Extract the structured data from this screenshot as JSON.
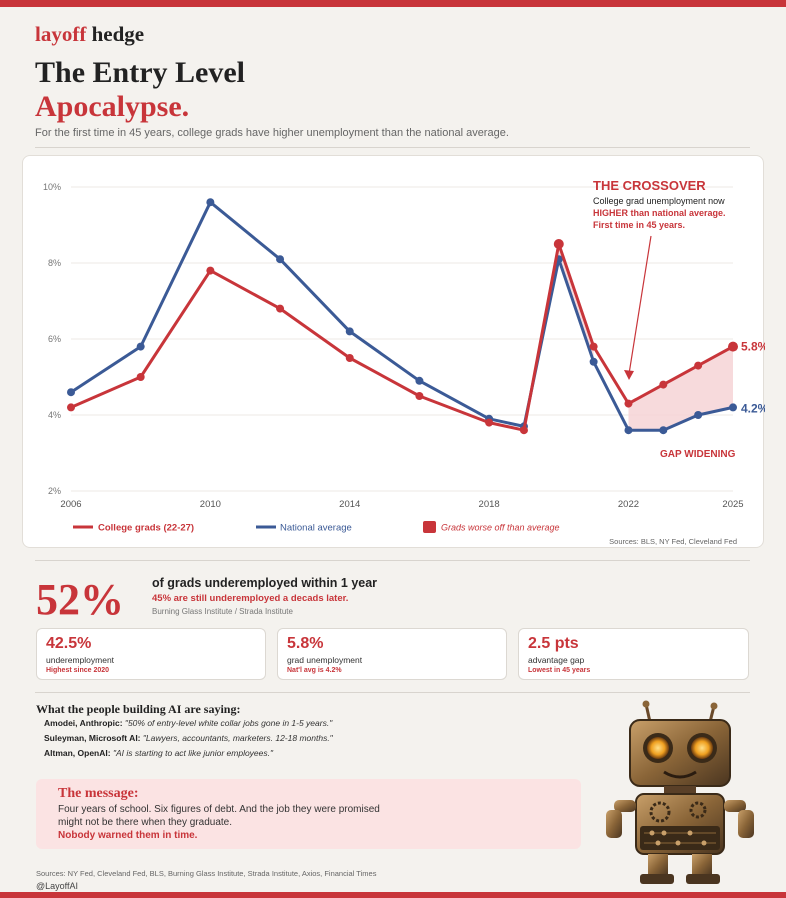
{
  "brand": {
    "part1": "layoff",
    "part2": "hedge"
  },
  "title": {
    "line1": "The Entry Level",
    "line2": "Apocalypse."
  },
  "subtitle": "For the first time in 45 years, college grads have higher unemployment than the national average.",
  "chart_data": {
    "type": "line",
    "x": [
      2006,
      2008,
      2010,
      2012,
      2014,
      2016,
      2018,
      2019,
      2020,
      2021,
      2022,
      2023,
      2024,
      2025
    ],
    "series": [
      {
        "name": "College grads (22-27)",
        "color": "#c8353a",
        "values": [
          4.2,
          5.0,
          7.8,
          6.8,
          5.5,
          4.5,
          3.8,
          3.6,
          8.5,
          5.8,
          4.3,
          4.8,
          5.3,
          5.8
        ]
      },
      {
        "name": "National average",
        "color": "#3b5a96",
        "values": [
          4.6,
          5.8,
          9.6,
          8.1,
          6.2,
          4.9,
          3.9,
          3.7,
          8.1,
          5.4,
          3.6,
          3.6,
          4.0,
          4.2
        ]
      }
    ],
    "x_ticks": [
      "2006",
      "2010",
      "2014",
      "2018",
      "2022",
      "2025"
    ],
    "y_ticks": [
      "2%",
      "4%",
      "6%",
      "8%",
      "10%"
    ],
    "ylim": [
      2,
      10
    ],
    "xlim": [
      2006,
      2025
    ],
    "grid": true,
    "end_labels": {
      "grads": "5.8%",
      "national": "4.2%"
    },
    "annotation": {
      "title": "THE CROSSOVER",
      "line1": "College grad unemployment now",
      "line2": "HIGHER than national average.",
      "line3": "First time in 45 years."
    },
    "gap_label": "GAP WIDENING",
    "legend": {
      "grads": "College grads (22-27)",
      "national": "National average",
      "gap": "Grads worse off than average"
    },
    "sources": "Sources: BLS, NY Fed, Cleveland Fed"
  },
  "stat": {
    "big": "52%",
    "headline": "of grads underemployed within 1 year",
    "red": "45% are still underemployed a decads later.",
    "source": "Burning Glass Institute / Strada Institute"
  },
  "boxes": [
    {
      "value": "42.5%",
      "label": "underemployment",
      "note": "Highest since 2020"
    },
    {
      "value": "5.8%",
      "label": "grad unemployment",
      "note": "Nat'l avg is 4.2%"
    },
    {
      "value": "2.5 pts",
      "label": "advantage gap",
      "note": "Lowest in 45 years"
    }
  ],
  "ai_section": {
    "heading": "What the people building AI are saying:",
    "quotes": [
      {
        "who": "Amodei, Anthropic:",
        "text": "\"50% of entry-level white collar jobs gone in 1-5 years.\""
      },
      {
        "who": "Suleyman, Microsoft AI:",
        "text": "\"Lawyers, accountants, marketers. 12-18 months.\""
      },
      {
        "who": "Altman, OpenAI:",
        "text": "\"AI is starting to act like junior employees.\""
      }
    ]
  },
  "message": {
    "title": "The message:",
    "line1": "Four years of school. Six figures of debt. And the job they were promised",
    "line2": "might not be there when they graduate.",
    "red": "Nobody warned them in time."
  },
  "footer": {
    "sources": "Sources: NY Fed, Cleveland Fed, BLS, Burning Glass Institute, Strada Institute, Axios, Financial Times",
    "handle": "@LayoffAI"
  },
  "colors": {
    "accent": "#c8353a",
    "navy": "#3b5a96",
    "gap_fill": "#f6d4d6"
  }
}
